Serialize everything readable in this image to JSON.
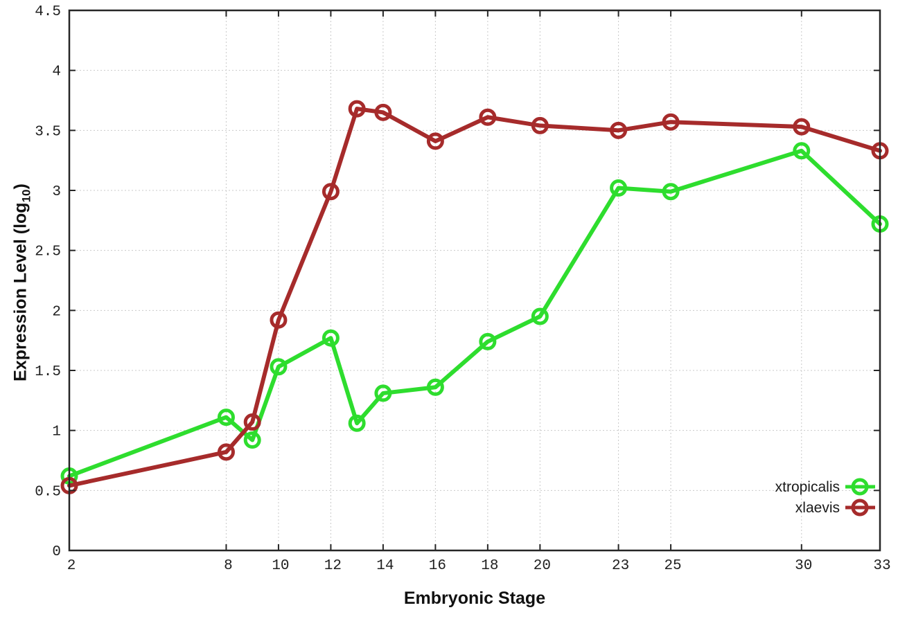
{
  "chart_data": {
    "type": "line",
    "title": "",
    "xlabel": "Embryonic Stage",
    "ylabel": "Expression Level (log10)",
    "ylabel_parts": {
      "prefix": "Expression Level (log",
      "sub": "10",
      "suffix": ")"
    },
    "xlim": [
      2,
      33
    ],
    "ylim": [
      0,
      4.5
    ],
    "grid": true,
    "legend_position": "bottom-right",
    "xticks": {
      "values": [
        2,
        8,
        10,
        12,
        14,
        16,
        18,
        20,
        23,
        25,
        30,
        33
      ],
      "labels": [
        "2",
        "8",
        "10",
        "12",
        "14",
        "16",
        "18",
        "20",
        "23",
        "25",
        "30",
        "33"
      ]
    },
    "yticks": {
      "values": [
        0,
        0.5,
        1,
        1.5,
        2,
        2.5,
        3,
        3.5,
        4,
        4.5
      ],
      "labels": [
        "0",
        "0.5",
        "1",
        "1.5",
        "2",
        "2.5",
        "3",
        "3.5",
        "4",
        "4.5"
      ]
    },
    "x": [
      2,
      8,
      9,
      10,
      12,
      13,
      14,
      16,
      18,
      20,
      23,
      25,
      30,
      33
    ],
    "series": [
      {
        "name": "xtropicalis",
        "color": "#2EDD2E",
        "values": [
          0.62,
          1.11,
          0.92,
          1.53,
          1.77,
          1.06,
          1.31,
          1.36,
          1.74,
          1.95,
          3.02,
          2.99,
          3.33,
          2.72
        ]
      },
      {
        "name": "xlaevis",
        "color": "#A62B2B",
        "values": [
          0.54,
          0.82,
          1.07,
          1.92,
          2.99,
          3.68,
          3.65,
          3.41,
          3.61,
          3.54,
          3.5,
          3.57,
          3.53,
          3.33
        ]
      }
    ],
    "colors": {
      "axis": "#262626",
      "grid": "#c9c9c9",
      "tick_text": "#202020",
      "legend_text": "#1a1a1a",
      "background": "#ffffff"
    }
  }
}
